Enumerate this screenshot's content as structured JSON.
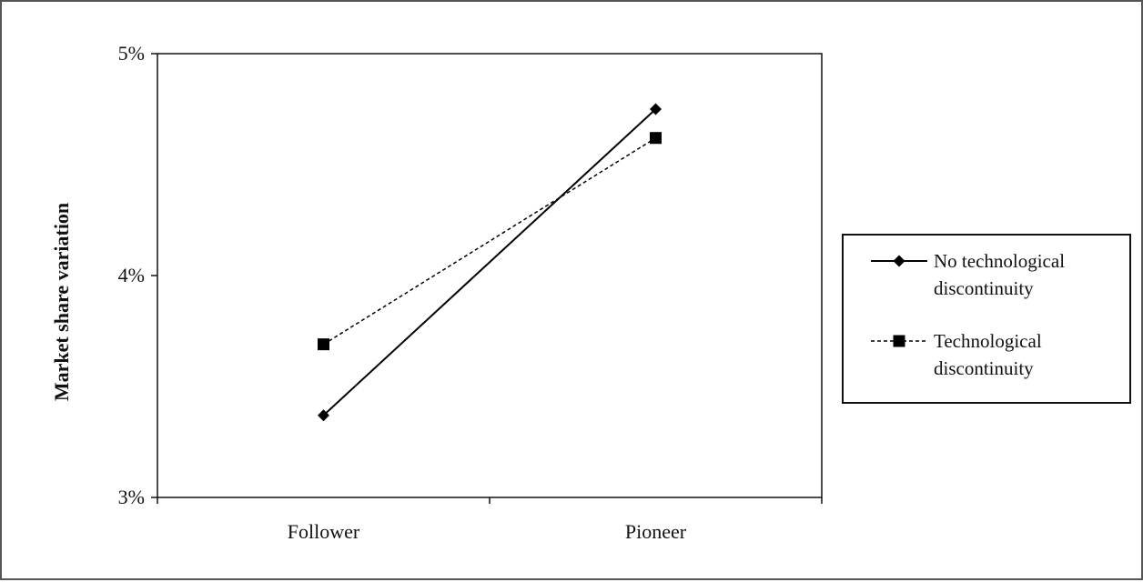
{
  "chart_data": {
    "type": "line",
    "title": "",
    "xlabel": "",
    "ylabel": "Market share variation",
    "categories": [
      "Follower",
      "Pioneer"
    ],
    "ylim": [
      3,
      5
    ],
    "yticks": [
      3,
      4,
      5
    ],
    "ytick_labels": [
      "3%",
      "4%",
      "5%"
    ],
    "series": [
      {
        "name": "No technological discontinuity",
        "legend_lines": [
          " No technological",
          "discontinuity"
        ],
        "values": [
          3.37,
          4.75
        ],
        "marker": "diamond",
        "line_style": "solid",
        "color": "#000000"
      },
      {
        "name": "Technological discontinuity",
        "legend_lines": [
          "Technological",
          "discontinuity"
        ],
        "values": [
          3.69,
          4.62
        ],
        "marker": "square",
        "line_style": "dashed",
        "color": "#000000"
      }
    ],
    "legend_position": "right",
    "grid": false
  }
}
